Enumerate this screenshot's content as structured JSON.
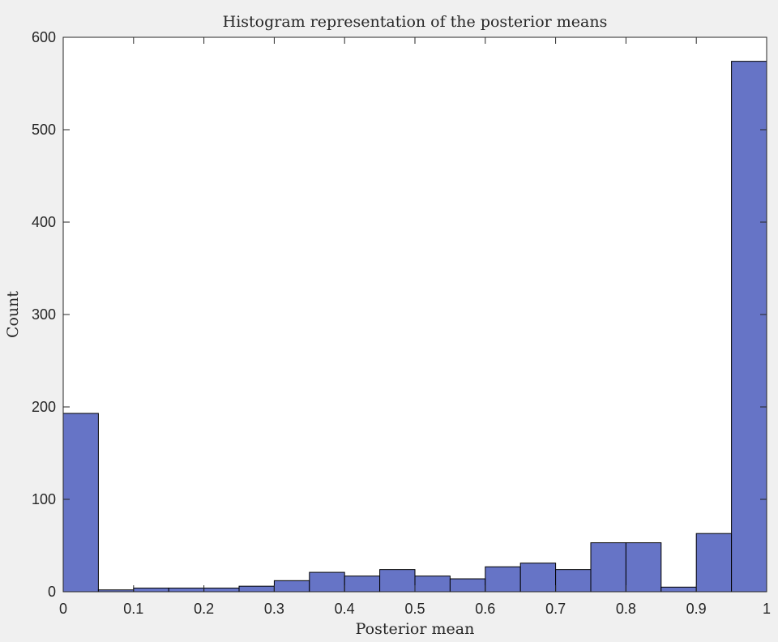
{
  "chart_data": {
    "type": "bar",
    "title": "Histogram representation of the posterior means",
    "xlabel": "Posterior mean",
    "ylabel": "Count",
    "xlim": [
      0,
      1
    ],
    "ylim": [
      0,
      600
    ],
    "xticks": [
      "0",
      "0.1",
      "0.2",
      "0.3",
      "0.4",
      "0.5",
      "0.6",
      "0.7",
      "0.8",
      "0.9",
      "1"
    ],
    "yticks": [
      "0",
      "100",
      "200",
      "300",
      "400",
      "500",
      "600"
    ],
    "bin_edges": [
      0,
      0.05,
      0.1,
      0.15,
      0.2,
      0.25,
      0.3,
      0.35,
      0.4,
      0.45,
      0.5,
      0.55,
      0.6,
      0.65,
      0.7,
      0.75,
      0.8,
      0.85,
      0.9,
      0.95,
      1.0
    ],
    "values": [
      193,
      2,
      4,
      4,
      4,
      6,
      12,
      21,
      17,
      24,
      17,
      14,
      27,
      31,
      24,
      53,
      53,
      5,
      63,
      574
    ],
    "grid": false,
    "bar_color": "#6674c6",
    "edge_color": "#000000"
  }
}
